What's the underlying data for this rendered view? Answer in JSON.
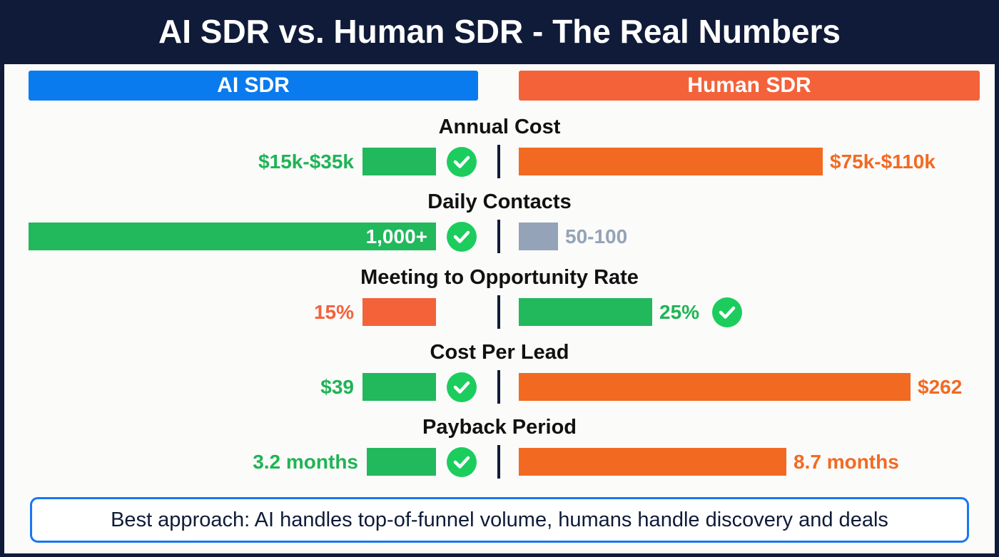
{
  "title": "AI SDR vs. Human SDR - The Real Numbers",
  "columns": {
    "ai": "AI SDR",
    "human": "Human SDR"
  },
  "colors": {
    "ai_header": "#0a7bef",
    "human_header": "#f4623a",
    "green_bar": "#22b85c",
    "green_text": "#1fb455",
    "check": "#1ccd5e",
    "orange_bar": "#f26a21",
    "orange_text": "#f26a21",
    "red_bar": "#f4623a",
    "gray_bar": "#94a3b8"
  },
  "note": "Best approach: AI handles top-of-funnel volume, humans handle discovery and deals",
  "chart_data": {
    "type": "bar",
    "layout": "diverging-comparison",
    "rows": [
      {
        "metric": "Annual Cost",
        "ai": {
          "label": "$15k-$35k",
          "level": 0.18,
          "color": "green",
          "check": true
        },
        "human": {
          "label": "$75k-$110k",
          "level": 0.66,
          "color": "orange",
          "check": false
        }
      },
      {
        "metric": "Daily Contacts",
        "ai": {
          "label": "1,000+",
          "level": 1.0,
          "color": "green",
          "check": true,
          "label_inside": true
        },
        "human": {
          "label": "50-100",
          "level": 0.085,
          "color": "gray",
          "check": false
        }
      },
      {
        "metric": "Meeting to Opportunity Rate",
        "ai": {
          "label": "15%",
          "level": 0.18,
          "color": "red",
          "check": false
        },
        "human": {
          "label": "25%",
          "level": 0.29,
          "color": "green",
          "check": true
        }
      },
      {
        "metric": "Cost Per Lead",
        "ai": {
          "label": "$39",
          "level": 0.18,
          "color": "green",
          "check": true
        },
        "human": {
          "label": "$262",
          "level": 0.85,
          "color": "orange",
          "check": false
        }
      },
      {
        "metric": "Payback Period",
        "ai": {
          "label": "3.2 months",
          "level": 0.17,
          "color": "green",
          "check": true
        },
        "human": {
          "label": "8.7 months",
          "level": 0.58,
          "color": "orange",
          "check": false
        }
      }
    ]
  }
}
